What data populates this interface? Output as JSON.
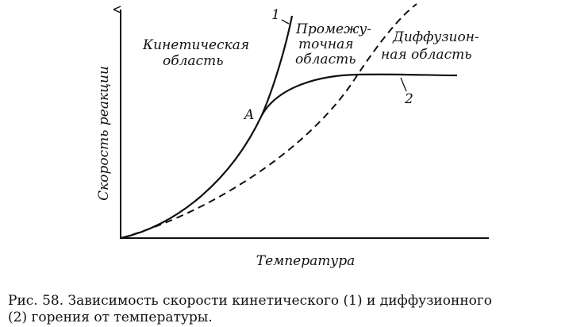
{
  "axes": {
    "y_label": "Скорость реакции",
    "x_label": "Температура"
  },
  "regions": {
    "kinetic": [
      "Кинетическая",
      "область"
    ],
    "intermediate": [
      "Промежу-",
      "точная",
      "область"
    ],
    "diffusion": [
      "Диффузион-",
      "ная область"
    ]
  },
  "curve_labels": {
    "kinetic": "1",
    "diffusion": "2",
    "point": "A"
  },
  "caption": [
    "Рис. 58. Зависимость  скорости  кинетического  (1) и диффузионного",
    "(2) горения от температуры."
  ]
}
